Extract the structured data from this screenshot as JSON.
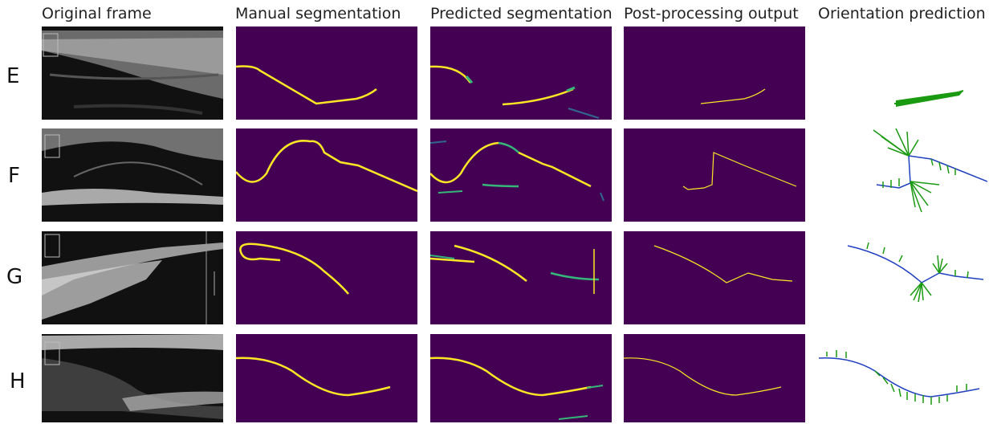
{
  "headers": {
    "original": "Original frame",
    "manual": "Manual segmentation",
    "predicted": "Predicted segmentation",
    "postproc": "Post-processing output",
    "orientation": "Orientation prediction"
  },
  "rows": [
    {
      "label": "E"
    },
    {
      "label": "F"
    },
    {
      "label": "G"
    },
    {
      "label": "H"
    }
  ],
  "colors": {
    "mask_background": "#440154",
    "segmentation": "#fde725",
    "uncertain": "#35b779",
    "orientation_ticks": "#1a9a10",
    "orientation_line": "#1f3fbf"
  }
}
